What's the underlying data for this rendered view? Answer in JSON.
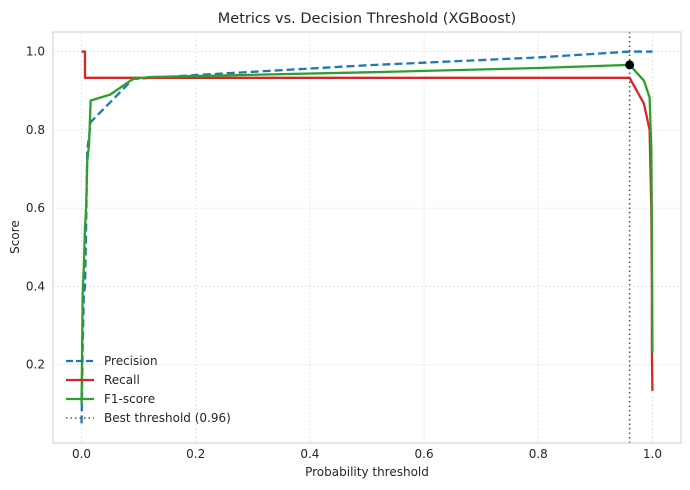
{
  "chart_data": {
    "type": "line",
    "title": "Metrics vs. Decision Threshold (XGBoost)",
    "xlabel": "Probability threshold",
    "ylabel": "Score",
    "xlim": [
      -0.05,
      1.05
    ],
    "ylim": [
      0.0,
      1.05
    ],
    "xticks": [
      0.0,
      0.2,
      0.4,
      0.6,
      0.8,
      1.0
    ],
    "xtick_labels": [
      "0.0",
      "0.2",
      "0.4",
      "0.6",
      "0.8",
      "1.0"
    ],
    "yticks": [
      0.2,
      0.4,
      0.6,
      0.8,
      1.0
    ],
    "ytick_labels": [
      "0.2",
      "0.4",
      "0.6",
      "0.8",
      "1.0"
    ],
    "grid": true,
    "legend_position": "lower-left",
    "series": [
      {
        "name": "Precision",
        "color": "#1f77b4",
        "style": "dashed",
        "x": [
          0.0,
          0.002,
          0.004,
          0.006,
          0.008,
          0.01,
          0.013,
          0.016,
          0.05,
          0.09,
          0.2,
          0.5,
          0.8,
          0.96,
          1.0
        ],
        "y": [
          0.05,
          0.25,
          0.38,
          0.4,
          0.55,
          0.75,
          0.78,
          0.82,
          0.87,
          0.93,
          0.94,
          0.965,
          0.985,
          1.0,
          1.0
        ]
      },
      {
        "name": "Recall",
        "color": "#d62728",
        "style": "solid",
        "x": [
          0.0,
          0.006,
          0.006,
          0.5,
          0.96,
          0.985,
          0.995,
          0.998,
          0.999,
          0.999,
          1.0
        ],
        "y": [
          1.0,
          1.0,
          0.933,
          0.933,
          0.933,
          0.867,
          0.8,
          0.6,
          0.4,
          0.233,
          0.133
        ]
      },
      {
        "name": "F1-score",
        "color": "#2ca02c",
        "style": "solid",
        "x": [
          0.0,
          0.002,
          0.004,
          0.006,
          0.008,
          0.01,
          0.013,
          0.016,
          0.05,
          0.09,
          0.12,
          0.5,
          0.8,
          0.96,
          0.985,
          0.995,
          0.998,
          0.999,
          1.0
        ],
        "y": [
          0.1,
          0.38,
          0.45,
          0.55,
          0.6,
          0.72,
          0.76,
          0.875,
          0.89,
          0.93,
          0.935,
          0.947,
          0.958,
          0.966,
          0.926,
          0.883,
          0.75,
          0.55,
          0.23
        ]
      }
    ],
    "best_threshold": {
      "label": "Best threshold (0.96)",
      "x": 0.96,
      "y": 0.966,
      "color": "#555555",
      "marker_color": "#000000"
    }
  }
}
